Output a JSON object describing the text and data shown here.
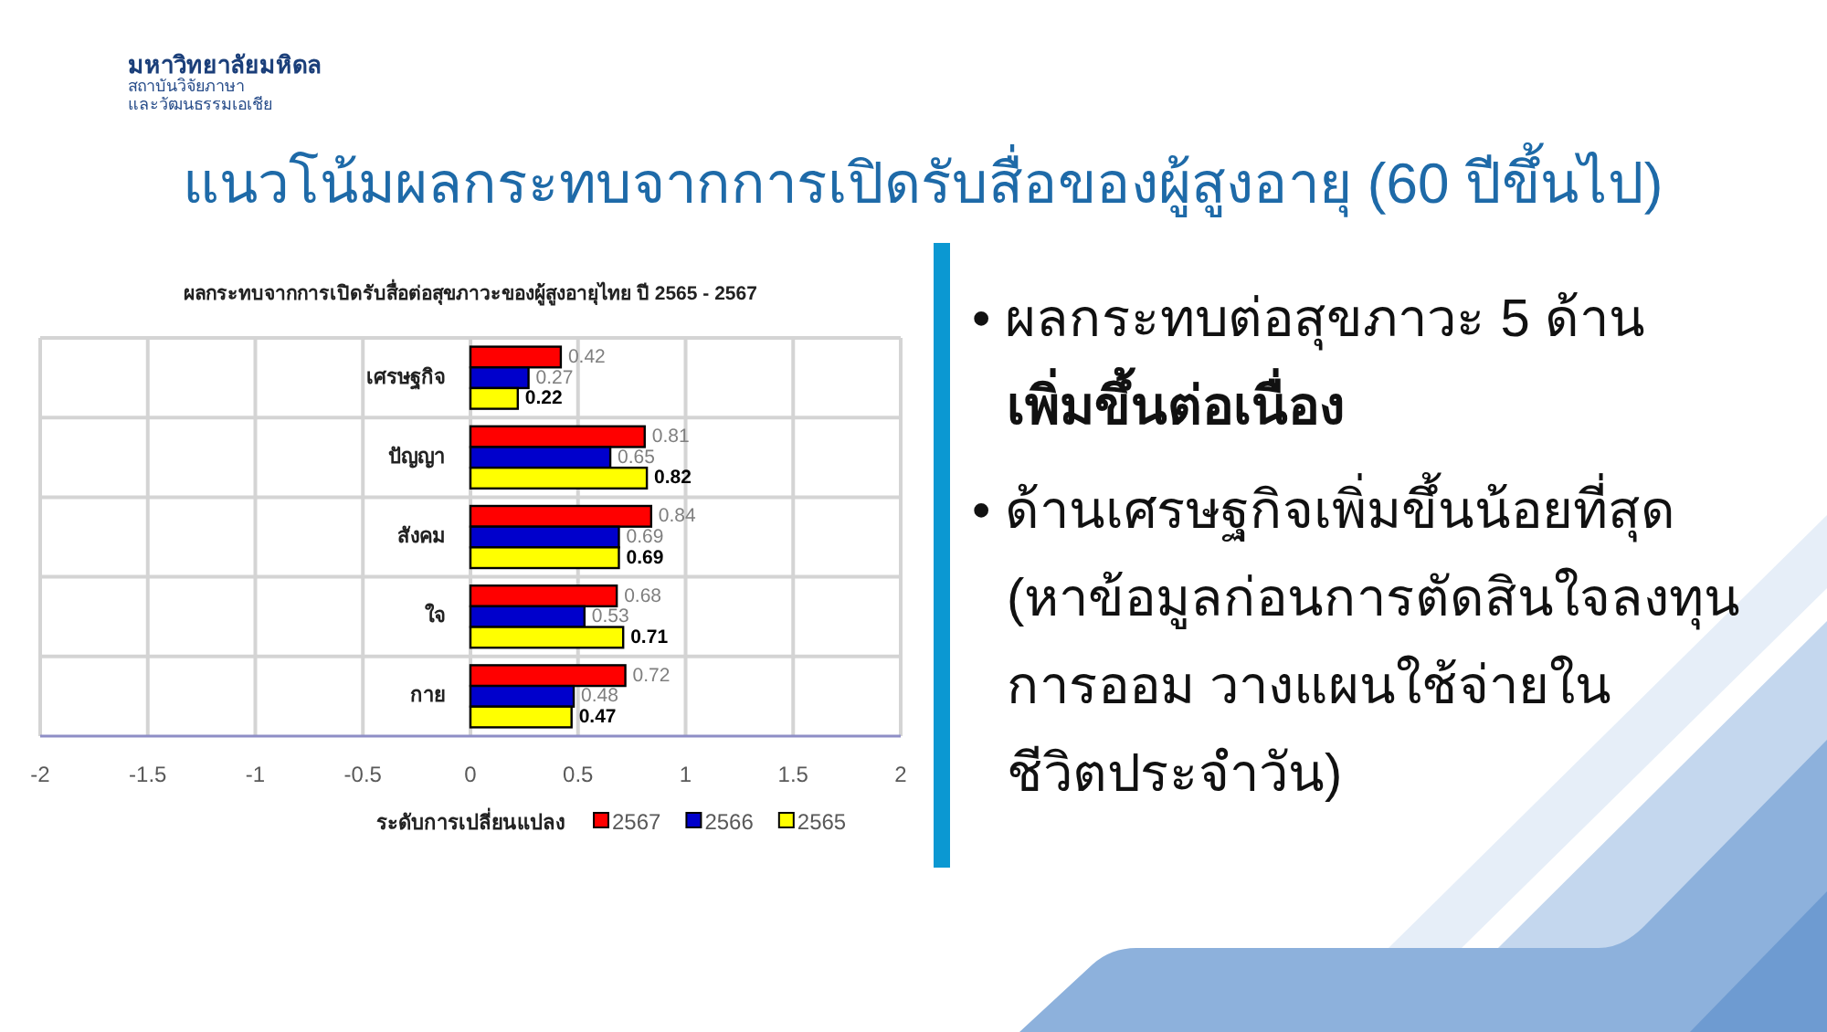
{
  "chart_data": {
    "type": "bar",
    "orientation": "horizontal",
    "title": "แนวโน้มผลกระทบจากการเปิดรับสื่อของผู้สูงอายุ (60 ปีขึ้นไป)",
    "subtitle": "ผลกระทบจากการเปิดรับสื่อต่อสุขภาวะของผู้สูงอายุไทย ปี 2565 - 2567",
    "xlabel": "ระดับการเปลี่ยนแปลง",
    "categories": [
      "เศรษฐกิจ",
      "ปัญญา",
      "สังคม",
      "ใจ",
      "กาย"
    ],
    "series": [
      {
        "name": "2567",
        "color": "#ff0000",
        "values": [
          0.42,
          0.81,
          0.84,
          0.68,
          0.72
        ]
      },
      {
        "name": "2566",
        "color": "#0000cc",
        "values": [
          0.27,
          0.65,
          0.69,
          0.53,
          0.48
        ]
      },
      {
        "name": "2565",
        "color": "#ffff00",
        "values": [
          0.22,
          0.82,
          0.69,
          0.71,
          0.47
        ]
      }
    ],
    "xlim": [
      -2,
      2
    ],
    "xticks": [
      -2,
      -1.5,
      -1,
      -0.5,
      0,
      0.5,
      1,
      1.5,
      2
    ],
    "grid": true,
    "legend": "bottom",
    "data_labels": true,
    "annotations": [
      "มหาวิทยาลัยมหิดล",
      "สถาบันวิจัยภาษา\nและวัฒนธรรมเอเชีย",
      "• ผลกระทบต่อสุขภาวะ 5 ด้าน\n**เพิ่มขึ้นต่อเนื่อง**",
      "• ด้านเศรษฐกิจเพิ่มขึ้นน้อยที่สุด\n(หาข้อมูลก่อนการตัดสินใจลงทุน\nการออม วางแผนใช้จ่ายใน\nชีวิตประจำวัน)"
    ]
  }
}
